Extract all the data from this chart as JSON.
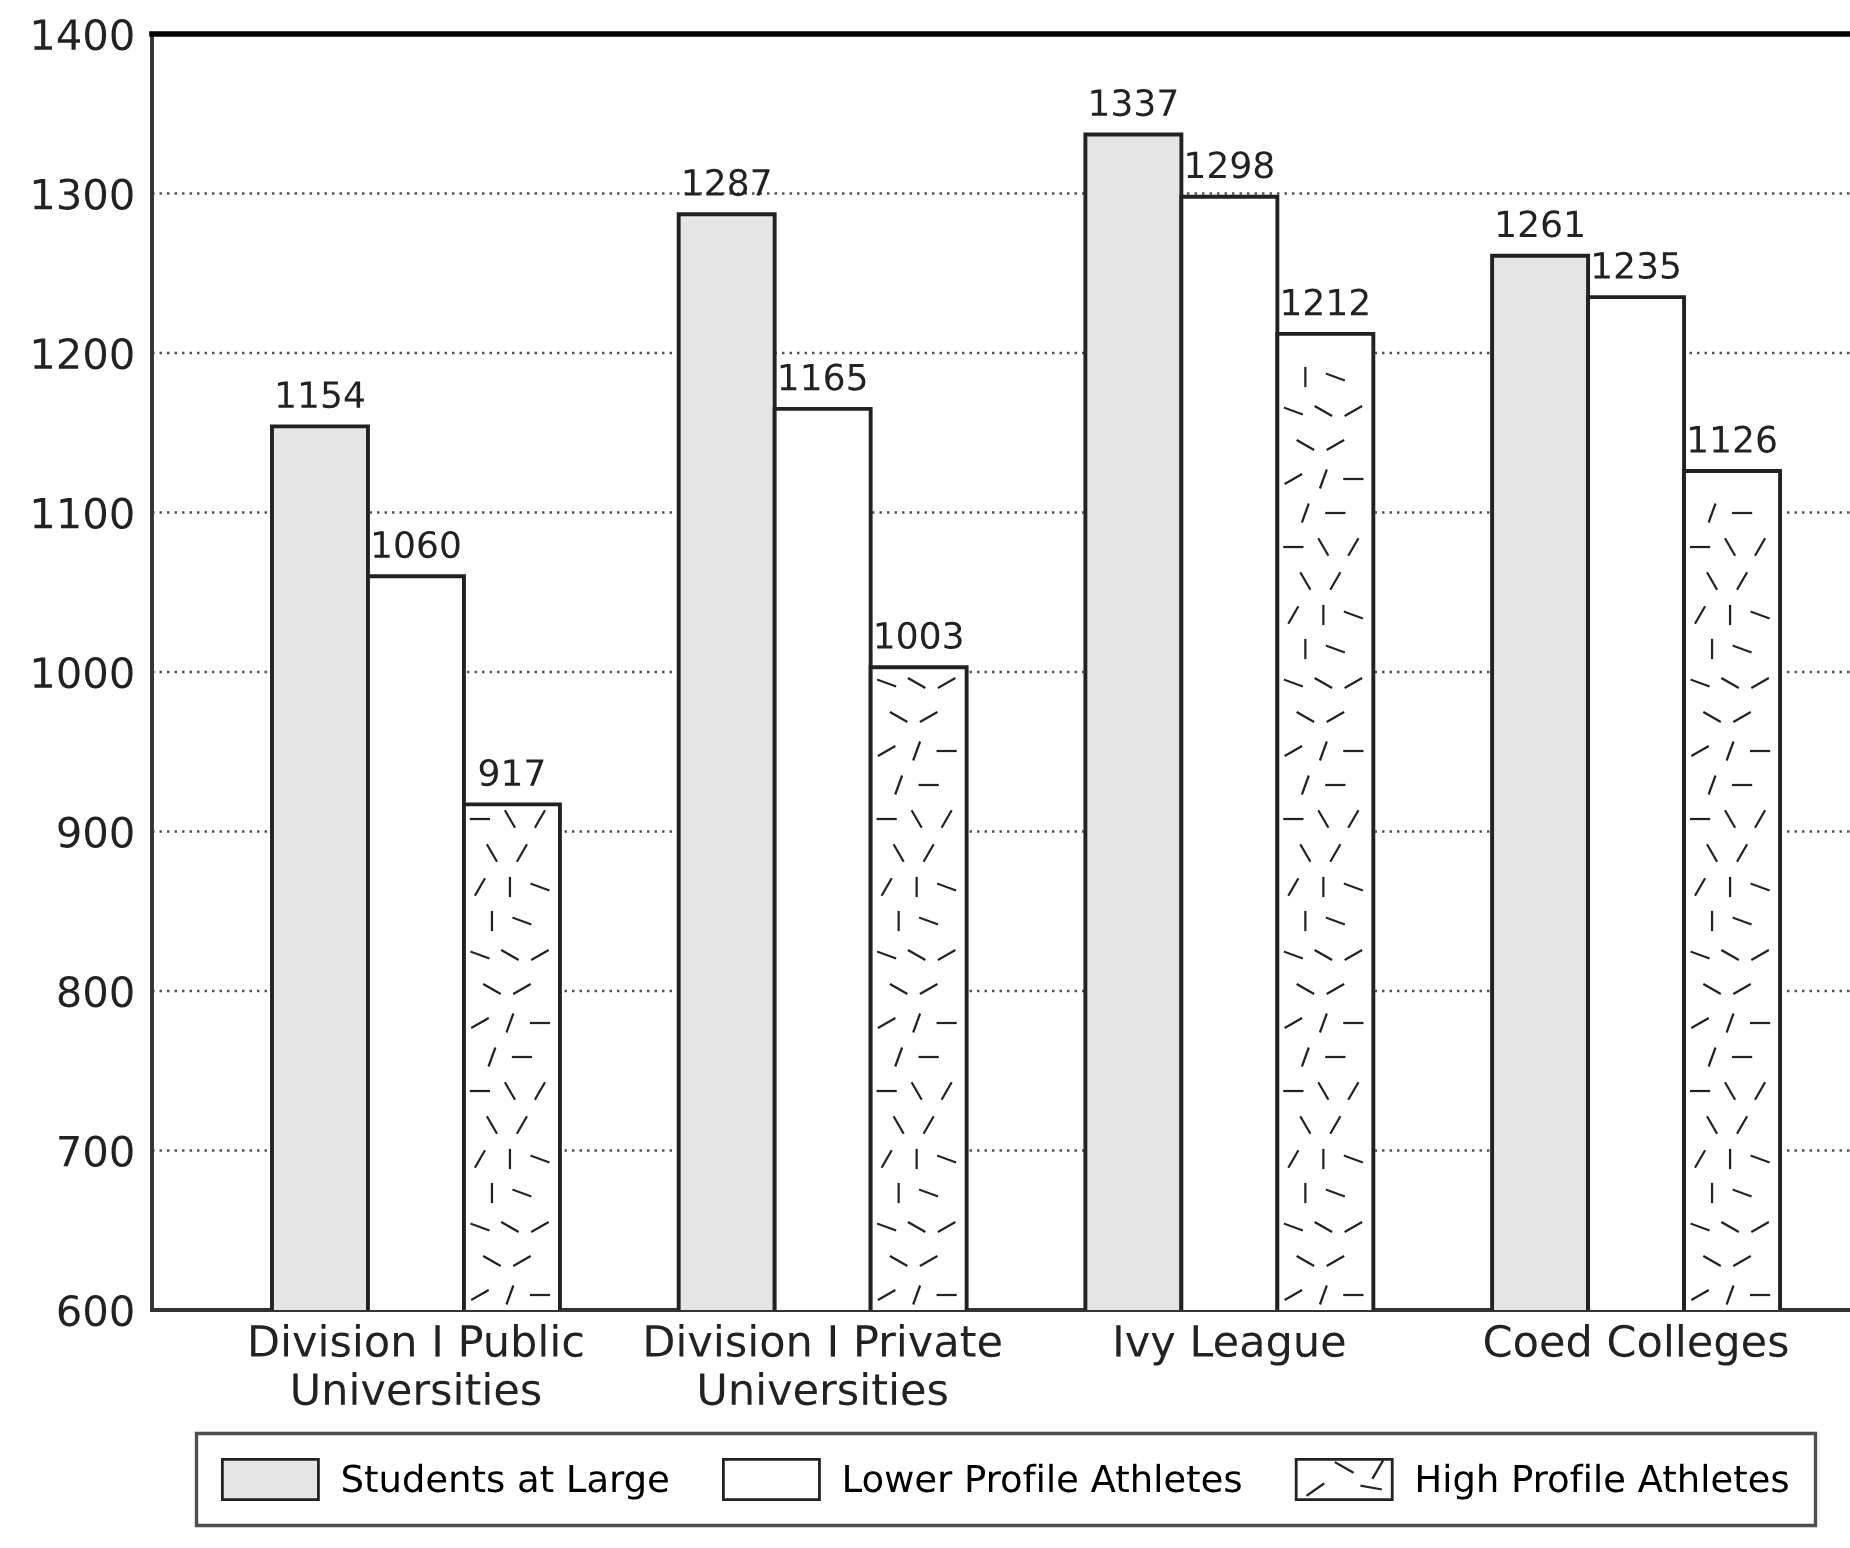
{
  "chart_data": {
    "type": "bar",
    "categories": [
      "Division I Public\nUniversities",
      "Division I Private\nUniversities",
      "Ivy League",
      "Coed Colleges"
    ],
    "series": [
      {
        "name": "Students at Large",
        "color": "#e5e5e5",
        "values": [
          1154,
          1287,
          1337,
          1261
        ]
      },
      {
        "name": "Lower Profile Athletes",
        "color": "#ffffff",
        "values": [
          1060,
          1165,
          1298,
          1235
        ]
      },
      {
        "name": "High Profile Athletes",
        "color": "#ffffff",
        "values": [
          917,
          1003,
          1212,
          1126
        ]
      }
    ],
    "ylim": [
      600,
      1400
    ],
    "yticks": [
      600,
      700,
      800,
      900,
      1000,
      1100,
      1200,
      1300,
      1400
    ],
    "grid": "y",
    "legend": "bottom",
    "data_labels": true
  }
}
